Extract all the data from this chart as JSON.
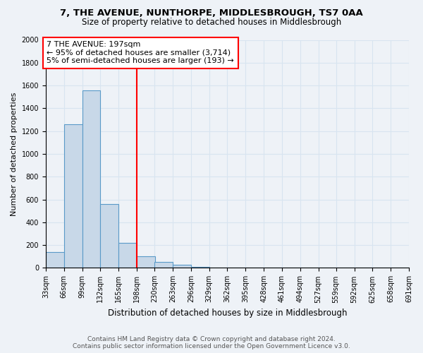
{
  "title": "7, THE AVENUE, NUNTHORPE, MIDDLESBROUGH, TS7 0AA",
  "subtitle": "Size of property relative to detached houses in Middlesbrough",
  "xlabel": "Distribution of detached houses by size in Middlesbrough",
  "ylabel": "Number of detached properties",
  "bin_edges": [
    33,
    66,
    99,
    132,
    165,
    198,
    230,
    263,
    296,
    329,
    362,
    395,
    428,
    461,
    494,
    527,
    559,
    592,
    625,
    658,
    691
  ],
  "bar_heights": [
    140,
    1260,
    1560,
    560,
    220,
    100,
    50,
    25,
    10,
    5,
    5,
    2,
    2,
    1,
    1,
    0,
    0,
    0,
    0,
    0
  ],
  "bar_color": "#c8d8e8",
  "bar_edge_color": "#5a9ac8",
  "red_line_x": 198,
  "annotation_line1": "7 THE AVENUE: 197sqm",
  "annotation_line2": "← 95% of detached houses are smaller (3,714)",
  "annotation_line3": "5% of semi-detached houses are larger (193) →",
  "ylim": [
    0,
    2000
  ],
  "yticks": [
    0,
    200,
    400,
    600,
    800,
    1000,
    1200,
    1400,
    1600,
    1800,
    2000
  ],
  "bg_color": "#eef2f7",
  "grid_color": "#d8e4f0",
  "footer_line1": "Contains HM Land Registry data © Crown copyright and database right 2024.",
  "footer_line2": "Contains public sector information licensed under the Open Government Licence v3.0.",
  "title_fontsize": 9.5,
  "subtitle_fontsize": 8.5,
  "ylabel_fontsize": 8,
  "xlabel_fontsize": 8.5,
  "tick_fontsize": 7,
  "annotation_fontsize": 8,
  "footer_fontsize": 6.5
}
